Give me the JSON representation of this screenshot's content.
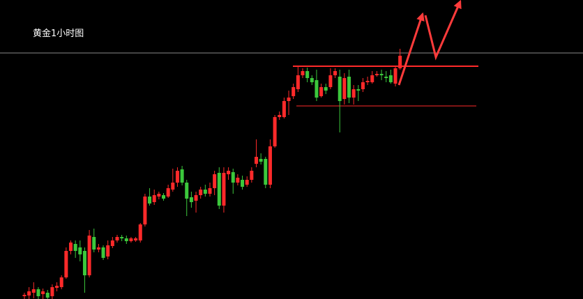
{
  "chart_data": {
    "type": "candlestick",
    "title": "黄金1小时图",
    "up_color": "#ff2a2a",
    "down_color": "#3cc83c",
    "ylim": [
      0,
      429
    ],
    "ohlc": [
      [
        4,
        9,
        0,
        6
      ],
      [
        5,
        17,
        0,
        11
      ],
      [
        9,
        24,
        1,
        14
      ],
      [
        14,
        17,
        0,
        4
      ],
      [
        7,
        15,
        0,
        11
      ],
      [
        9,
        13,
        0,
        2
      ],
      [
        4,
        21,
        0,
        17
      ],
      [
        16,
        24,
        11,
        19
      ],
      [
        17,
        34,
        14,
        31
      ],
      [
        31,
        74,
        29,
        69
      ],
      [
        69,
        84,
        64,
        81
      ],
      [
        79,
        84,
        59,
        69
      ],
      [
        74,
        84,
        54,
        64
      ],
      [
        69,
        74,
        9,
        34
      ],
      [
        34,
        99,
        31,
        91
      ],
      [
        89,
        101,
        67,
        71
      ],
      [
        71,
        79,
        67,
        74
      ],
      [
        74,
        77,
        56,
        59
      ],
      [
        61,
        84,
        57,
        77
      ],
      [
        76,
        89,
        73,
        84
      ],
      [
        84,
        92,
        81,
        89
      ],
      [
        89,
        92,
        83,
        87
      ],
      [
        87,
        91,
        79,
        83
      ],
      [
        83,
        89,
        81,
        87
      ],
      [
        84,
        89,
        82,
        87
      ],
      [
        84,
        109,
        81,
        107
      ],
      [
        107,
        151,
        104,
        147
      ],
      [
        147,
        159,
        134,
        137
      ],
      [
        139,
        157,
        135,
        149
      ],
      [
        147,
        154,
        143,
        151
      ],
      [
        149,
        152,
        141,
        144
      ],
      [
        147,
        164,
        145,
        159
      ],
      [
        157,
        187,
        154,
        167
      ],
      [
        167,
        189,
        161,
        184
      ],
      [
        186,
        191,
        163,
        167
      ],
      [
        167,
        171,
        119,
        144
      ],
      [
        146,
        154,
        131,
        139
      ],
      [
        141,
        154,
        124,
        149
      ],
      [
        149,
        161,
        144,
        157
      ],
      [
        157,
        164,
        147,
        151
      ],
      [
        151,
        167,
        147,
        159
      ],
      [
        159,
        184,
        149,
        179
      ],
      [
        181,
        189,
        129,
        134
      ],
      [
        134,
        189,
        124,
        181
      ],
      [
        179,
        189,
        171,
        184
      ],
      [
        182,
        187,
        151,
        167
      ],
      [
        167,
        179,
        163,
        174
      ],
      [
        171,
        177,
        157,
        161
      ],
      [
        164,
        176,
        161,
        171
      ],
      [
        171,
        189,
        167,
        184
      ],
      [
        194,
        229,
        189,
        204
      ],
      [
        201,
        209,
        193,
        197
      ],
      [
        201,
        204,
        159,
        164
      ],
      [
        164,
        229,
        159,
        219
      ],
      [
        219,
        264,
        217,
        261
      ],
      [
        261,
        269,
        257,
        264
      ],
      [
        261,
        289,
        259,
        284
      ],
      [
        284,
        299,
        264,
        289
      ],
      [
        291,
        309,
        287,
        304
      ],
      [
        301,
        334,
        297,
        321
      ],
      [
        321,
        331,
        317,
        327
      ],
      [
        327,
        332,
        311,
        317
      ],
      [
        317,
        321,
        307,
        311
      ],
      [
        314,
        329,
        284,
        289
      ],
      [
        291,
        309,
        289,
        304
      ],
      [
        304,
        309,
        294,
        299
      ],
      [
        304,
        331,
        301,
        321
      ],
      [
        321,
        331,
        317,
        327
      ],
      [
        319,
        329,
        239,
        284
      ],
      [
        287,
        324,
        279,
        317
      ],
      [
        319,
        329,
        281,
        289
      ],
      [
        289,
        307,
        279,
        301
      ],
      [
        301,
        307,
        284,
        299
      ],
      [
        301,
        317,
        297,
        311
      ],
      [
        311,
        319,
        307,
        313
      ],
      [
        311,
        327,
        309,
        321
      ],
      [
        321,
        327,
        319,
        323
      ],
      [
        323,
        329,
        314,
        321
      ],
      [
        319,
        327,
        311,
        317
      ],
      [
        321,
        329,
        309,
        311
      ],
      [
        309,
        334,
        305,
        331
      ],
      [
        331,
        359,
        329,
        349
      ]
    ]
  }
}
